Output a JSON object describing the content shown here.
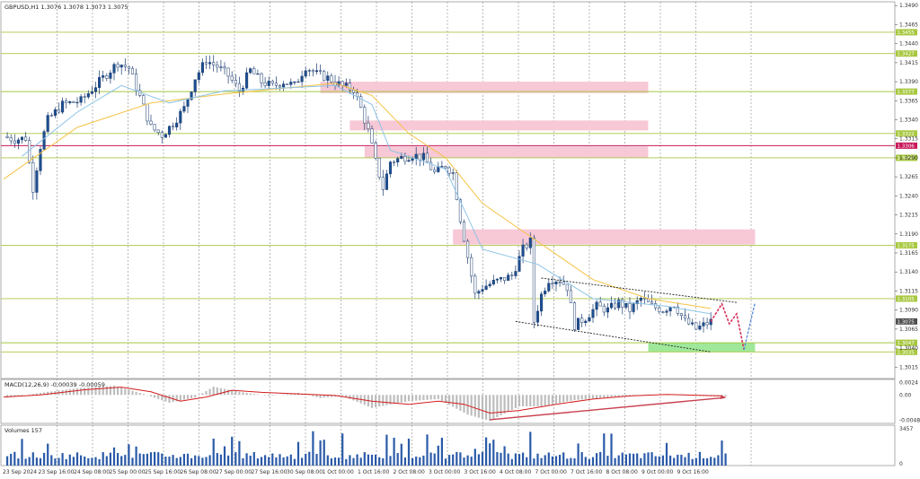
{
  "chart_data": {
    "type": "candlestick",
    "symbol_title": "GBPUSD,H1  1.3076 1.3078 1.3073 1.3075",
    "price_axis": {
      "range": [
        1.3,
        1.3495
      ],
      "ticks": [
        1.349,
        1.3465,
        1.344,
        1.3415,
        1.339,
        1.3365,
        1.334,
        1.3315,
        1.329,
        1.3265,
        1.324,
        1.3215,
        1.319,
        1.3165,
        1.314,
        1.3115,
        1.309,
        1.3065,
        1.304,
        1.3015
      ]
    },
    "time_axis": {
      "labels": [
        "23 Sep 2024",
        "23 Sep 16:00",
        "24 Sep 08:00",
        "25 Sep 00:00",
        "25 Sep 16:00",
        "26 Sep 08:00",
        "27 Sep 00:00",
        "27 Sep 16:00",
        "30 Sep 08:00",
        "1 Oct 00:00",
        "1 Oct 16:00",
        "2 Oct 08:00",
        "3 Oct 00:00",
        "3 Oct 16:00",
        "4 Oct 08:00",
        "7 Oct 00:00",
        "7 Oct 16:00",
        "8 Oct 08:00",
        "9 Oct 00:00",
        "9 Oct 16:00"
      ]
    },
    "grid": true,
    "price_path": [
      [
        0,
        1.3318
      ],
      [
        3,
        1.3314
      ],
      [
        6,
        1.3316
      ],
      [
        8,
        1.325
      ],
      [
        10,
        1.3305
      ],
      [
        12,
        1.334
      ],
      [
        16,
        1.336
      ],
      [
        21,
        1.3365
      ],
      [
        25,
        1.3385
      ],
      [
        29,
        1.3405
      ],
      [
        31,
        1.3415
      ],
      [
        34,
        1.3408
      ],
      [
        37,
        1.337
      ],
      [
        40,
        1.333
      ],
      [
        43,
        1.332
      ],
      [
        46,
        1.3335
      ],
      [
        49,
        1.3355
      ],
      [
        52,
        1.3395
      ],
      [
        55,
        1.3418
      ],
      [
        58,
        1.341
      ],
      [
        61,
        1.3398
      ],
      [
        64,
        1.3378
      ],
      [
        67,
        1.3405
      ],
      [
        70,
        1.339
      ],
      [
        73,
        1.3384
      ],
      [
        76,
        1.339
      ],
      [
        79,
        1.3385
      ],
      [
        82,
        1.341
      ],
      [
        85,
        1.34
      ],
      [
        88,
        1.3395
      ],
      [
        92,
        1.3384
      ],
      [
        95,
        1.338
      ],
      [
        97,
        1.3355
      ],
      [
        99,
        1.3325
      ],
      [
        101,
        1.3285
      ],
      [
        103,
        1.325
      ],
      [
        105,
        1.3285
      ],
      [
        108,
        1.329
      ],
      [
        111,
        1.3294
      ],
      [
        114,
        1.329
      ],
      [
        117,
        1.327
      ],
      [
        120,
        1.328
      ],
      [
        122,
        1.327
      ],
      [
        124,
        1.321
      ],
      [
        126,
        1.316
      ],
      [
        128,
        1.311
      ],
      [
        130,
        1.312
      ],
      [
        134,
        1.3128
      ],
      [
        138,
        1.3135
      ],
      [
        141,
        1.317
      ],
      [
        143,
        1.318
      ],
      [
        144,
        1.3075
      ],
      [
        146,
        1.311
      ],
      [
        148,
        1.313
      ],
      [
        151,
        1.313
      ],
      [
        153,
        1.312
      ],
      [
        155,
        1.307
      ],
      [
        158,
        1.308
      ],
      [
        161,
        1.3095
      ],
      [
        164,
        1.309
      ],
      [
        167,
        1.31
      ],
      [
        170,
        1.309
      ],
      [
        173,
        1.3105
      ],
      [
        176,
        1.3095
      ],
      [
        179,
        1.309
      ],
      [
        182,
        1.3098
      ],
      [
        185,
        1.3075
      ],
      [
        188,
        1.3065
      ],
      [
        190,
        1.307
      ],
      [
        192,
        1.3075
      ]
    ],
    "ema_fast": [
      [
        5,
        1.3292
      ],
      [
        20,
        1.335
      ],
      [
        32,
        1.3385
      ],
      [
        45,
        1.3362
      ],
      [
        60,
        1.3378
      ],
      [
        90,
        1.3385
      ],
      [
        100,
        1.336
      ],
      [
        105,
        1.33
      ],
      [
        120,
        1.3275
      ],
      [
        130,
        1.317
      ],
      [
        145,
        1.315
      ],
      [
        160,
        1.3105
      ],
      [
        180,
        1.3095
      ],
      [
        192,
        1.3085
      ]
    ],
    "ema_slow": [
      [
        0,
        1.3262
      ],
      [
        20,
        1.333
      ],
      [
        40,
        1.3362
      ],
      [
        60,
        1.3374
      ],
      [
        90,
        1.3388
      ],
      [
        100,
        1.3372
      ],
      [
        110,
        1.3322
      ],
      [
        120,
        1.329
      ],
      [
        130,
        1.323
      ],
      [
        145,
        1.318
      ],
      [
        160,
        1.313
      ],
      [
        175,
        1.3105
      ],
      [
        192,
        1.3092
      ]
    ],
    "horizontal_levels": [
      {
        "price": 1.3455,
        "label": "1.3455",
        "color": "#a8c840"
      },
      {
        "price": 1.3427,
        "label": "1.3427",
        "color": "#a8c840"
      },
      {
        "price": 1.3377,
        "label": "1.3377",
        "color": "#a8c840"
      },
      {
        "price": 1.3322,
        "label": "1.3322",
        "color": "#a8c840"
      },
      {
        "price": 1.3306,
        "label": "1.3306",
        "color": "#c8185a"
      },
      {
        "price": 1.329,
        "label": "1.3290",
        "color": "#a8c840"
      },
      {
        "price": 1.3175,
        "label": "1.3175",
        "color": "#a8c840"
      },
      {
        "price": 1.3105,
        "label": "1.3105",
        "color": "#a8c840"
      },
      {
        "price": 1.3047,
        "label": "1.3047",
        "color": "#a8c840"
      },
      {
        "price": 1.3035,
        "label": "1.3035",
        "color": "#a8c840"
      }
    ],
    "current_price": {
      "price": 1.3075,
      "label": "1.3075",
      "color": "#505050"
    },
    "resistance_zones": [
      {
        "x1": 86,
        "x2": 175,
        "p_high": 1.339,
        "p_low": 1.3375
      },
      {
        "x1": 94,
        "x2": 175,
        "p_high": 1.3339,
        "p_low": 1.3326
      },
      {
        "x1": 98,
        "x2": 175,
        "p_high": 1.3305,
        "p_low": 1.329
      },
      {
        "x1": 122,
        "x2": 204,
        "p_high": 1.3196,
        "p_low": 1.3176
      }
    ],
    "support_zone": {
      "x1": 175,
      "x2": 204,
      "p_high": 1.3047,
      "p_low": 1.3035
    },
    "channel": {
      "upper": [
        [
          146,
          1.3132
        ],
        [
          199,
          1.31
        ]
      ],
      "lower": [
        [
          139,
          1.3075
        ],
        [
          192,
          1.3035
        ]
      ]
    },
    "forecast_path": [
      [
        192,
        1.3075
      ],
      [
        195,
        1.3098
      ],
      [
        197,
        1.3072
      ],
      [
        199,
        1.3085
      ],
      [
        201,
        1.3038
      ],
      [
        204,
        1.31
      ]
    ],
    "macd": {
      "label": "MACD(12,26,9) -0.00039 -0.00059",
      "ticks": [
        0.0024,
        0.0,
        -0.00486
      ],
      "range": [
        -0.0055,
        0.003
      ],
      "histogram": [
        [
          0,
          -0.0006
        ],
        [
          10,
          0.0004
        ],
        [
          20,
          0.0013
        ],
        [
          30,
          0.0018
        ],
        [
          38,
          0.0002
        ],
        [
          45,
          -0.0015
        ],
        [
          52,
          -0.0005
        ],
        [
          57,
          0.0016
        ],
        [
          64,
          0.0006
        ],
        [
          72,
          -0.0002
        ],
        [
          80,
          0.0004
        ],
        [
          86,
          -0.0006
        ],
        [
          92,
          -0.0002
        ],
        [
          100,
          -0.0025
        ],
        [
          110,
          -0.0012
        ],
        [
          118,
          -0.0008
        ],
        [
          126,
          -0.0038
        ],
        [
          132,
          -0.005
        ],
        [
          140,
          -0.0022
        ],
        [
          146,
          -0.0022
        ],
        [
          155,
          -0.001
        ],
        [
          165,
          -0.0004
        ],
        [
          175,
          0.0001
        ],
        [
          185,
          -0.0001
        ],
        [
          195,
          -0.0003
        ]
      ],
      "signal": [
        [
          0,
          -0.0004
        ],
        [
          10,
          0.0
        ],
        [
          22,
          0.001
        ],
        [
          32,
          0.0015
        ],
        [
          40,
          0.0006
        ],
        [
          48,
          -0.0012
        ],
        [
          55,
          -0.0004
        ],
        [
          62,
          0.0009
        ],
        [
          70,
          0.0005
        ],
        [
          80,
          0.0002
        ],
        [
          90,
          -0.0001
        ],
        [
          100,
          -0.0012
        ],
        [
          110,
          -0.0018
        ],
        [
          118,
          -0.0012
        ],
        [
          125,
          -0.0018
        ],
        [
          132,
          -0.0035
        ],
        [
          140,
          -0.003
        ],
        [
          150,
          -0.0018
        ],
        [
          160,
          -0.0008
        ],
        [
          170,
          -0.0002
        ],
        [
          180,
          0.0001
        ],
        [
          195,
          -0.0002
        ]
      ],
      "trendline": [
        [
          132,
          -0.0048
        ],
        [
          196,
          -0.0005
        ]
      ]
    },
    "volume": {
      "label": "Volumes 157",
      "ticks": [
        3457,
        0
      ],
      "max": 3457
    }
  }
}
